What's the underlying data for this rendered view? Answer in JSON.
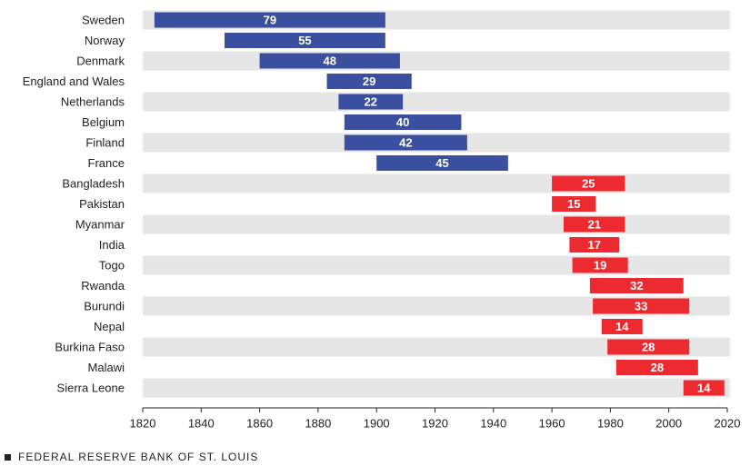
{
  "chart_data": {
    "type": "range_bar",
    "categories": [
      "Sweden",
      "Norway",
      "Denmark",
      "England and Wales",
      "Netherlands",
      "Belgium",
      "Finland",
      "France",
      "Bangladesh",
      "Pakistan",
      "Myanmar",
      "India",
      "Togo",
      "Rwanda",
      "Burundi",
      "Nepal",
      "Burkina Faso",
      "Malawi",
      "Sierra Leone"
    ],
    "starts": [
      1824,
      1848,
      1860,
      1883,
      1887,
      1889,
      1889,
      1900,
      1960,
      1960,
      1964,
      1966,
      1967,
      1973,
      1974,
      1977,
      1979,
      1982,
      2005
    ],
    "values": [
      79,
      55,
      48,
      29,
      22,
      40,
      42,
      45,
      25,
      15,
      21,
      17,
      19,
      32,
      33,
      14,
      28,
      28,
      14
    ],
    "colors": [
      "#3a4fa0",
      "#3a4fa0",
      "#3a4fa0",
      "#3a4fa0",
      "#3a4fa0",
      "#3a4fa0",
      "#3a4fa0",
      "#3a4fa0",
      "#ec2a2f",
      "#ec2a2f",
      "#ec2a2f",
      "#ec2a2f",
      "#ec2a2f",
      "#ec2a2f",
      "#ec2a2f",
      "#ec2a2f",
      "#ec2a2f",
      "#ec2a2f",
      "#ec2a2f"
    ],
    "xlim": [
      1820,
      2020
    ],
    "xticks": [
      1820,
      1840,
      1860,
      1880,
      1900,
      1920,
      1940,
      1960,
      1980,
      2000,
      2020
    ],
    "row_bands": true
  },
  "footer": "FEDERAL RESERVE BANK OF ST. LOUIS"
}
